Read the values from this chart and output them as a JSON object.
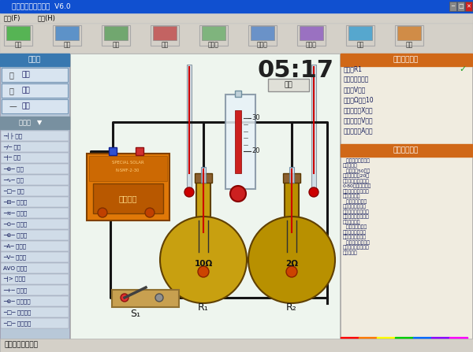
{
  "title": "中学电路虚拟实验室  V6.0",
  "bg_color": "#d4d0c8",
  "canvas_bg": "#eef5ee",
  "left_panel_bg": "#b8c8d8",
  "right_panel_bg": "#f0ece0",
  "titlebar_color": "#1050d0",
  "orange_header": "#d06818",
  "toolbar_items": [
    "开始",
    "打开",
    "保存",
    "后退",
    "存图片",
    "电路图",
    "手绘板",
    "帮助",
    "购买"
  ],
  "right_panel_title1": "当前元件设置",
  "right_panel_title2": "当前元件说明",
  "time_display": "05:17",
  "freeze_btn": "冻结",
  "fields": [
    "名称：R1",
    "类别：电热揭箱",
    "电压（V）：",
    "电阻（Ω）：10",
    "触点位置（X）：",
    "额定电压（V）：",
    "额定电流（A）："
  ],
  "flask1_label": "10Ω",
  "flask1_sub": "R₁",
  "flask2_label": "2Ω",
  "flask2_sub": "R₂",
  "switch_label": "S₁",
  "status_bar": "提示：电路畅通。",
  "comp_list": [
    [
      "-|+",
      "电源"
    ],
    [
      "/",
      "开关"
    ],
    [
      "|",
      "开关"
    ],
    [
      "X",
      "电灯"
    ],
    [
      "~",
      "电铃"
    ],
    [
      "□",
      "电阻"
    ],
    [
      "□",
      "电阻箱"
    ],
    [
      "~",
      "变阻器"
    ],
    [
      "⊙",
      "电动机"
    ],
    [
      "⊗",
      "电流计"
    ],
    [
      "A",
      "电流表"
    ],
    [
      "V",
      "电压表"
    ],
    [
      "AVO",
      "多用表"
    ],
    [
      "|>",
      "二极管"
    ],
    [
      "+",
      "接线柱"
    ],
    [
      "⊗",
      "变阻电灯"
    ],
    [
      "□",
      "电阻测试"
    ],
    [
      "□",
      "电热模拟"
    ]
  ],
  "wire_color": "#151515",
  "battery_orange": "#e07808",
  "flask_yellow": "#c8a010",
  "flask_yellow2": "#b89000"
}
